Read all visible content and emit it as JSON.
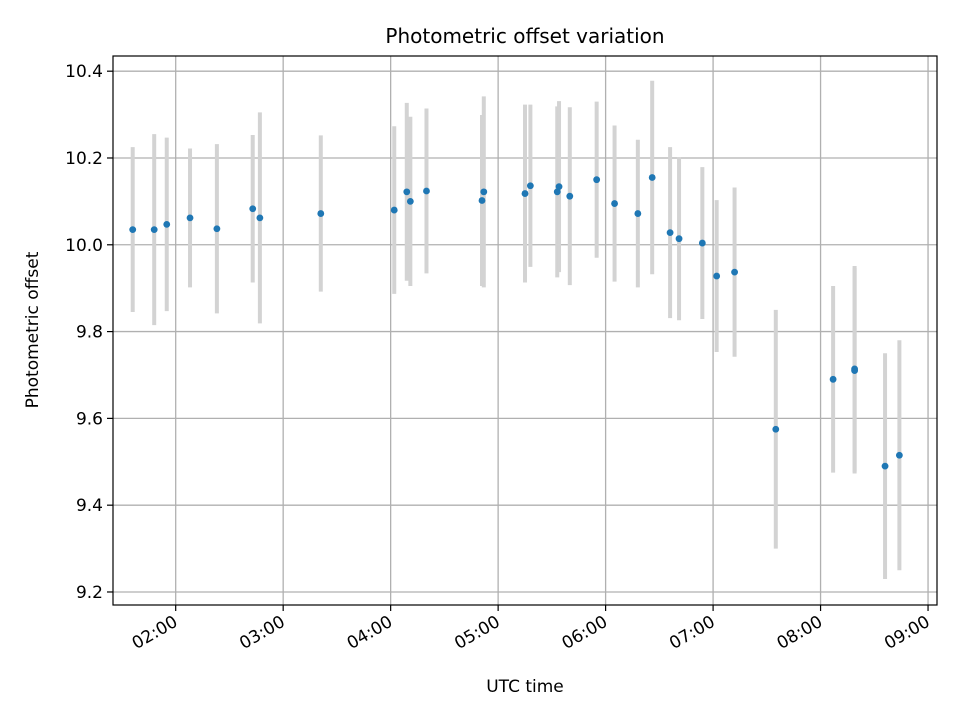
{
  "chart_data": {
    "type": "scatter",
    "title": "Photometric offset variation",
    "xlabel": "UTC time",
    "ylabel": "Photometric offset",
    "grid": true,
    "x_ticks": [
      "02:00",
      "03:00",
      "04:00",
      "05:00",
      "06:00",
      "07:00",
      "08:00",
      "09:00"
    ],
    "y_ticks": [
      "9.2",
      "9.4",
      "9.6",
      "9.8",
      "10.0",
      "10.2",
      "10.4"
    ],
    "xlim": [
      "01:25",
      "09:05"
    ],
    "ylim": [
      9.17,
      10.435
    ],
    "colors": {
      "point": "#1f77b4",
      "errorbar": "#d3d3d3",
      "grid": "#b0b0b0"
    },
    "points": [
      {
        "x": "01:36",
        "y": 10.035,
        "err": 0.19
      },
      {
        "x": "01:48",
        "y": 10.035,
        "err": 0.22
      },
      {
        "x": "01:55",
        "y": 10.047,
        "err": 0.2
      },
      {
        "x": "02:08",
        "y": 10.062,
        "err": 0.16
      },
      {
        "x": "02:23",
        "y": 10.037,
        "err": 0.195
      },
      {
        "x": "02:43",
        "y": 10.083,
        "err": 0.17
      },
      {
        "x": "02:47",
        "y": 10.062,
        "err": 0.243
      },
      {
        "x": "03:21",
        "y": 10.072,
        "err": 0.18
      },
      {
        "x": "04:02",
        "y": 10.08,
        "err": 0.193
      },
      {
        "x": "04:09",
        "y": 10.122,
        "err": 0.205
      },
      {
        "x": "04:11",
        "y": 10.1,
        "err": 0.195
      },
      {
        "x": "04:20",
        "y": 10.124,
        "err": 0.19
      },
      {
        "x": "04:51",
        "y": 10.102,
        "err": 0.197
      },
      {
        "x": "04:52",
        "y": 10.122,
        "err": 0.22
      },
      {
        "x": "05:15",
        "y": 10.118,
        "err": 0.205
      },
      {
        "x": "05:18",
        "y": 10.136,
        "err": 0.187
      },
      {
        "x": "05:33",
        "y": 10.122,
        "err": 0.197
      },
      {
        "x": "05:34",
        "y": 10.134,
        "err": 0.197
      },
      {
        "x": "05:40",
        "y": 10.112,
        "err": 0.205
      },
      {
        "x": "05:55",
        "y": 10.15,
        "err": 0.18
      },
      {
        "x": "06:05",
        "y": 10.095,
        "err": 0.18
      },
      {
        "x": "06:18",
        "y": 10.072,
        "err": 0.17
      },
      {
        "x": "06:26",
        "y": 10.155,
        "err": 0.223
      },
      {
        "x": "06:36",
        "y": 10.028,
        "err": 0.197
      },
      {
        "x": "06:41",
        "y": 10.014,
        "err": 0.188
      },
      {
        "x": "06:54",
        "y": 10.004,
        "err": 0.175
      },
      {
        "x": "07:02",
        "y": 9.928,
        "err": 0.175
      },
      {
        "x": "07:12",
        "y": 9.937,
        "err": 0.195
      },
      {
        "x": "07:35",
        "y": 9.575,
        "err": 0.275
      },
      {
        "x": "08:07",
        "y": 9.69,
        "err": 0.215
      },
      {
        "x": "08:19",
        "y": 9.71,
        "err": 0.237
      },
      {
        "x": "08:19",
        "y": 9.714,
        "err": 0.237
      },
      {
        "x": "08:36",
        "y": 9.49,
        "err": 0.26
      },
      {
        "x": "08:44",
        "y": 9.515,
        "err": 0.265
      }
    ]
  }
}
